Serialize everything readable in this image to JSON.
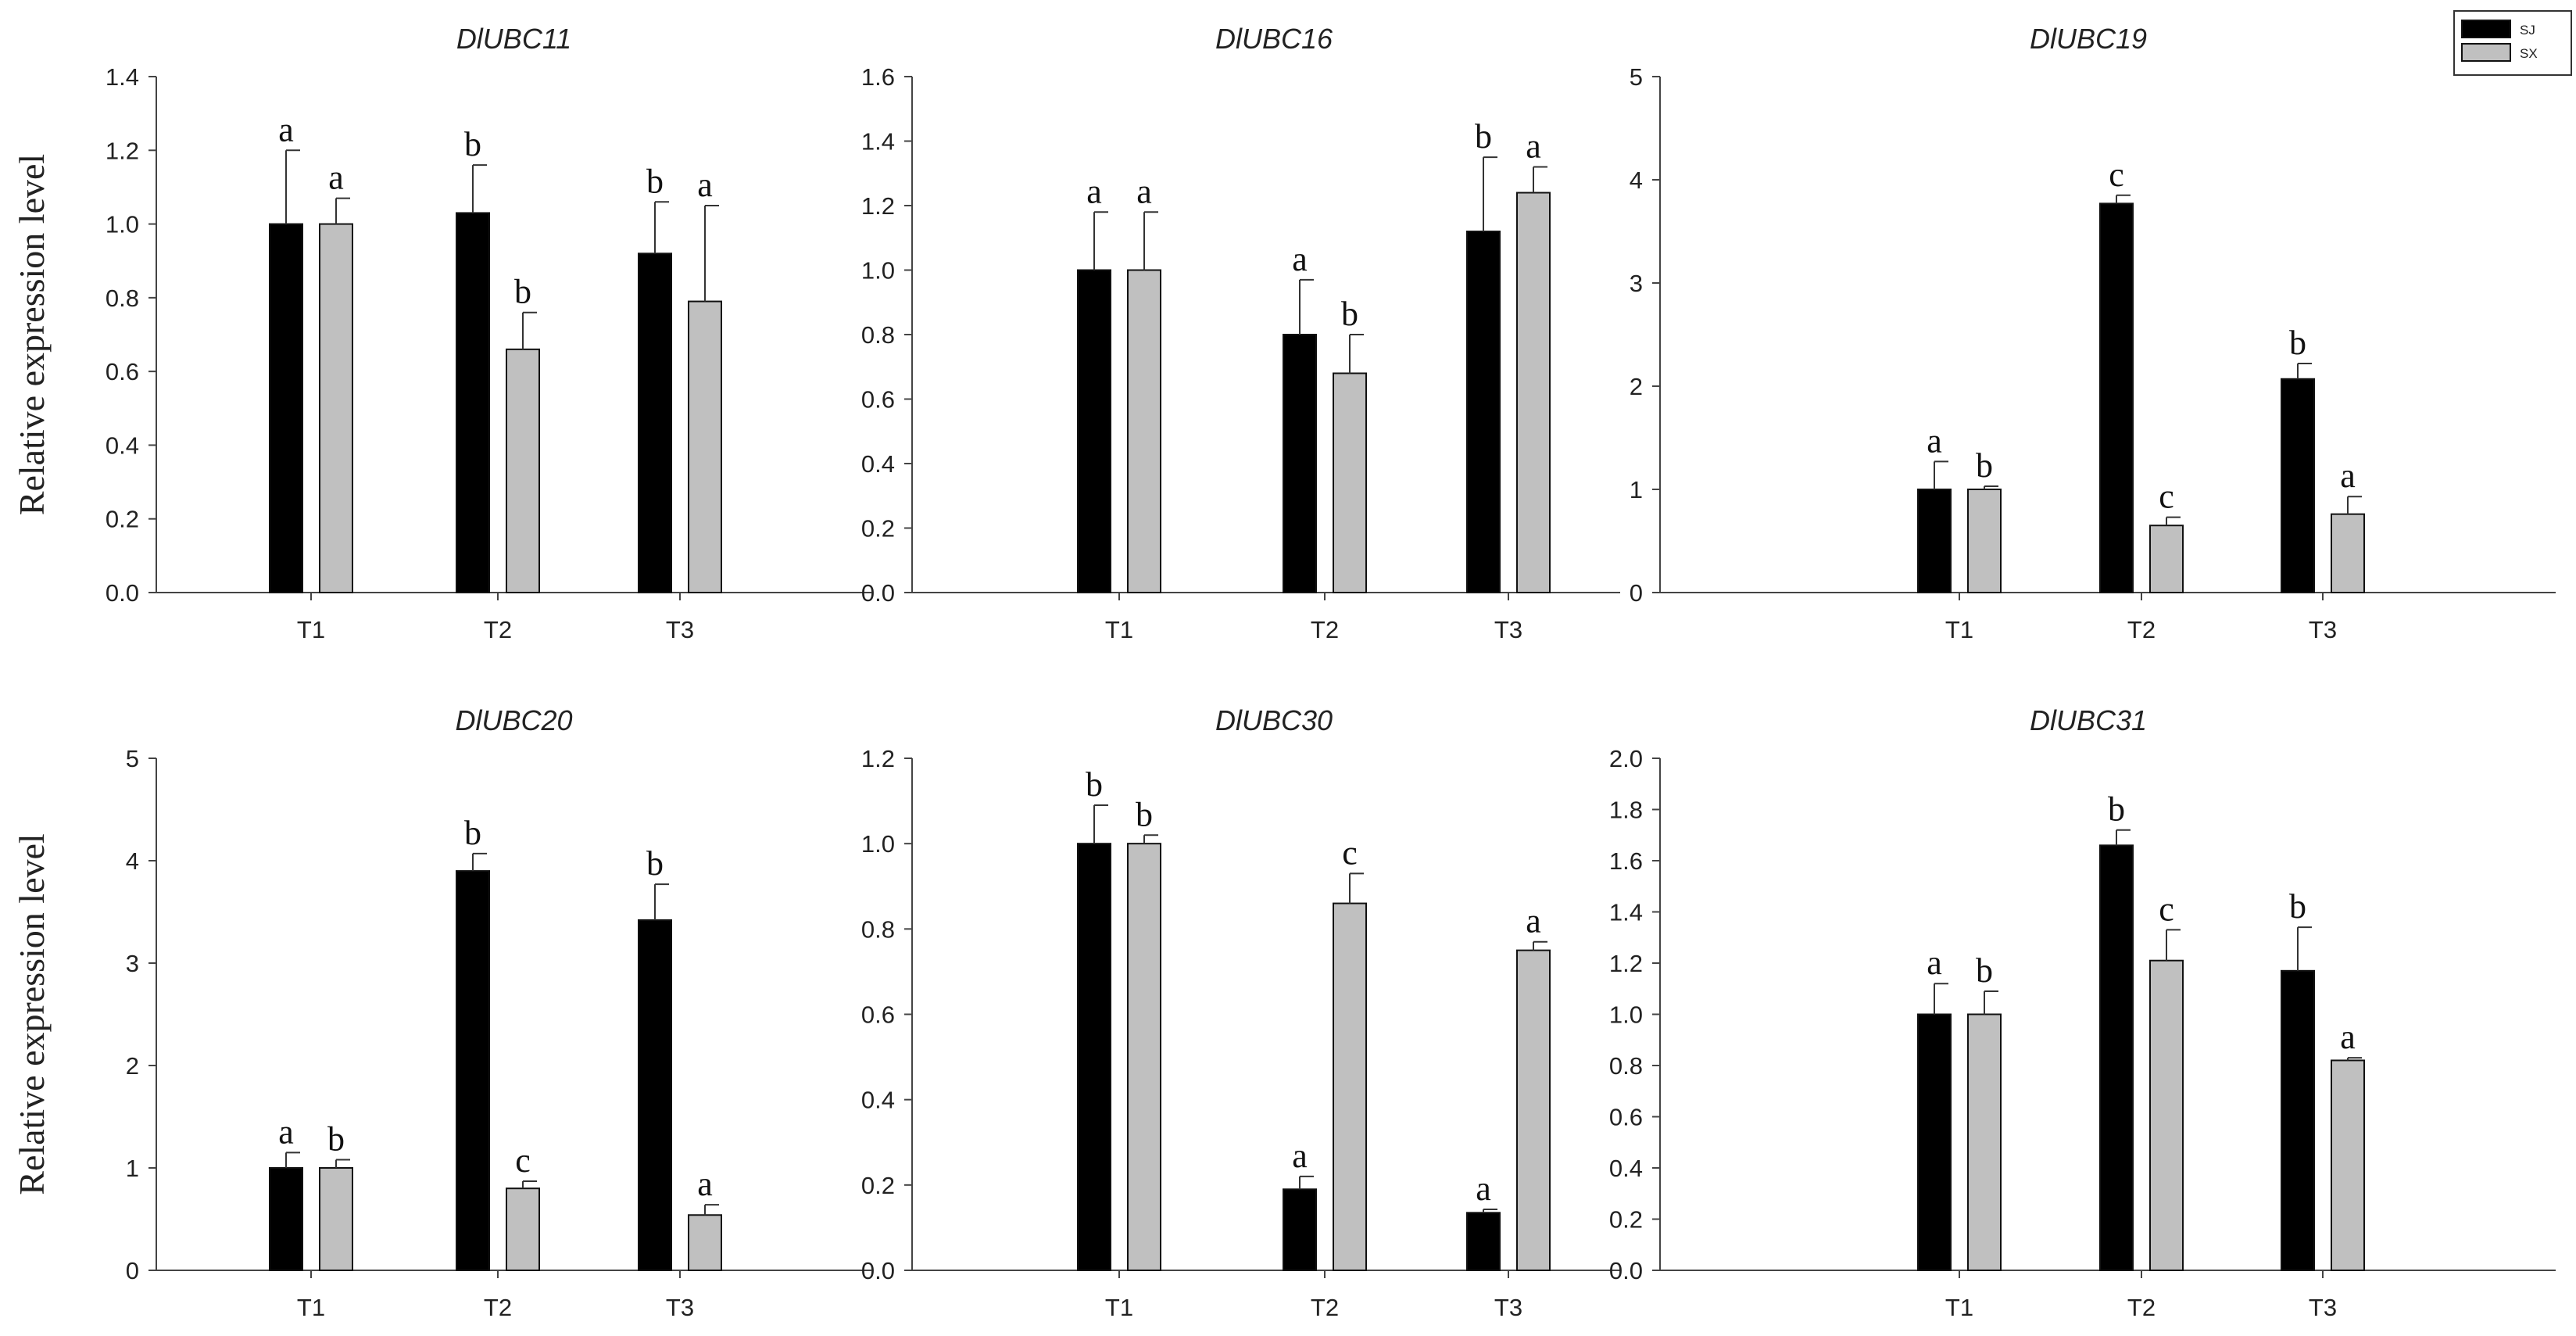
{
  "colors": {
    "SJ": "#000000",
    "SX": "#c0c0c0",
    "axis": "#444444"
  },
  "legend": {
    "entries": [
      "SJ",
      "SX"
    ],
    "placement": "top-right"
  },
  "chart_data": [
    {
      "type": "bar",
      "title": "DlUBC11",
      "ylabel": "Relative expression level",
      "xlabel": "",
      "ylim": [
        0,
        1.4
      ],
      "yticks": [
        "0.0",
        "0.2",
        "0.4",
        "0.6",
        "0.8",
        "1.0",
        "1.2",
        "1.4"
      ],
      "categories": [
        "T1",
        "T2",
        "T3"
      ],
      "series": [
        {
          "name": "SJ",
          "values": [
            1.0,
            1.03,
            0.92
          ],
          "errors": [
            0.2,
            0.13,
            0.14
          ],
          "labels": [
            "a",
            "b",
            "b"
          ]
        },
        {
          "name": "SX",
          "values": [
            1.0,
            0.66,
            0.79
          ],
          "errors": [
            0.07,
            0.1,
            0.26
          ],
          "labels": [
            "a",
            "b",
            "a"
          ]
        }
      ]
    },
    {
      "type": "bar",
      "title": "DlUBC16",
      "ylabel": "",
      "xlabel": "",
      "ylim": [
        0,
        1.6
      ],
      "yticks": [
        "0.0",
        "0.2",
        "0.4",
        "0.6",
        "0.8",
        "1.0",
        "1.2",
        "1.4",
        "1.6"
      ],
      "categories": [
        "T1",
        "T2",
        "T3"
      ],
      "series": [
        {
          "name": "SJ",
          "values": [
            1.0,
            0.8,
            1.12
          ],
          "errors": [
            0.18,
            0.17,
            0.23
          ],
          "labels": [
            "a",
            "a",
            "b"
          ]
        },
        {
          "name": "SX",
          "values": [
            1.0,
            0.68,
            1.24
          ],
          "errors": [
            0.18,
            0.12,
            0.08
          ],
          "labels": [
            "a",
            "b",
            "a"
          ]
        }
      ]
    },
    {
      "type": "bar",
      "title": "DlUBC19",
      "ylabel": "",
      "xlabel": "",
      "ylim": [
        0,
        5
      ],
      "yticks": [
        "0",
        "1",
        "2",
        "3",
        "4",
        "5"
      ],
      "categories": [
        "T1",
        "T2",
        "T3"
      ],
      "series": [
        {
          "name": "SJ",
          "values": [
            1.0,
            3.77,
            2.07
          ],
          "errors": [
            0.27,
            0.08,
            0.15
          ],
          "labels": [
            "a",
            "c",
            "b"
          ]
        },
        {
          "name": "SX",
          "values": [
            1.0,
            0.65,
            0.76
          ],
          "errors": [
            0.03,
            0.08,
            0.17
          ],
          "labels": [
            "b",
            "c",
            "a"
          ]
        }
      ]
    },
    {
      "type": "bar",
      "title": "DlUBC20",
      "ylabel": "Relative expression level",
      "xlabel": "",
      "ylim": [
        0,
        5
      ],
      "yticks": [
        "0",
        "1",
        "2",
        "3",
        "4",
        "5"
      ],
      "categories": [
        "T1",
        "T2",
        "T3"
      ],
      "series": [
        {
          "name": "SJ",
          "values": [
            1.0,
            3.9,
            3.42
          ],
          "errors": [
            0.15,
            0.17,
            0.35
          ],
          "labels": [
            "a",
            "b",
            "b"
          ]
        },
        {
          "name": "SX",
          "values": [
            1.0,
            0.8,
            0.54
          ],
          "errors": [
            0.08,
            0.07,
            0.1
          ],
          "labels": [
            "b",
            "c",
            "a"
          ]
        }
      ]
    },
    {
      "type": "bar",
      "title": "DlUBC30",
      "ylabel": "",
      "xlabel": "",
      "ylim": [
        0,
        1.2
      ],
      "yticks": [
        "0.0",
        "0.2",
        "0.4",
        "0.6",
        "0.8",
        "1.0",
        "1.2"
      ],
      "categories": [
        "T1",
        "T2",
        "T3"
      ],
      "series": [
        {
          "name": "SJ",
          "values": [
            1.0,
            0.19,
            0.135
          ],
          "errors": [
            0.09,
            0.03,
            0.008
          ],
          "labels": [
            "b",
            "a",
            "a"
          ]
        },
        {
          "name": "SX",
          "values": [
            1.0,
            0.86,
            0.75
          ],
          "errors": [
            0.02,
            0.07,
            0.02
          ],
          "labels": [
            "b",
            "c",
            "a"
          ]
        }
      ]
    },
    {
      "type": "bar",
      "title": "DlUBC31",
      "ylabel": "",
      "xlabel": "",
      "ylim": [
        0,
        2.0
      ],
      "yticks": [
        "0.0",
        "0.2",
        "0.4",
        "0.6",
        "0.8",
        "1.0",
        "1.2",
        "1.4",
        "1.6",
        "1.8",
        "2.0"
      ],
      "categories": [
        "T1",
        "T2",
        "T3"
      ],
      "series": [
        {
          "name": "SJ",
          "values": [
            1.0,
            1.66,
            1.17
          ],
          "errors": [
            0.12,
            0.06,
            0.17
          ],
          "labels": [
            "a",
            "b",
            "b"
          ]
        },
        {
          "name": "SX",
          "values": [
            1.0,
            1.21,
            0.82
          ],
          "errors": [
            0.09,
            0.12,
            0.01
          ],
          "labels": [
            "b",
            "c",
            "a"
          ]
        }
      ]
    }
  ]
}
